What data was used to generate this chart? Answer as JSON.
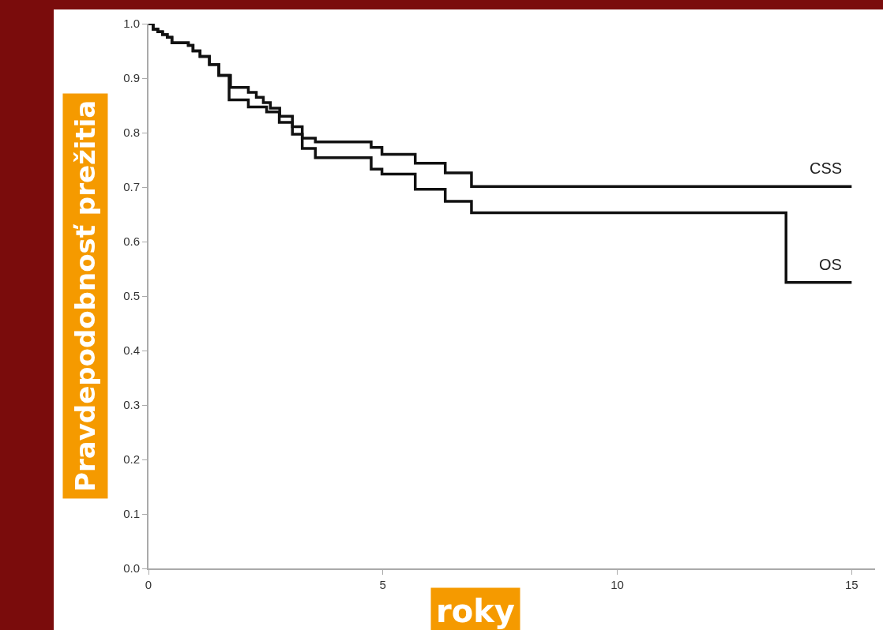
{
  "chart_data": {
    "type": "step",
    "xlabel": "roky",
    "ylabel": "Pravdepodobnosť prežitia",
    "xlim": [
      0,
      15.5
    ],
    "xticks": [
      0,
      5,
      10,
      15
    ],
    "ylim": [
      0,
      1.0
    ],
    "yticks": [
      {
        "value": 0,
        "label": "0.0"
      },
      {
        "value": 0.1,
        "label": "0.1"
      },
      {
        "value": 0.2,
        "label": "0.2"
      },
      {
        "value": 0.3,
        "label": "0.3"
      },
      {
        "value": 0.4,
        "label": "0.4"
      },
      {
        "value": 0.5,
        "label": "0.5"
      },
      {
        "value": 0.6,
        "label": "0.6"
      },
      {
        "value": 0.7,
        "label": "0.7"
      },
      {
        "value": 0.8,
        "label": "0.8"
      },
      {
        "value": 0.9,
        "label": "0.9"
      },
      {
        "value": 1,
        "label": "1.0"
      }
    ],
    "grid": false,
    "legend": false,
    "marker": "none",
    "line_style": "solid",
    "series": [
      {
        "name": "CSS",
        "color": "#111111",
        "x": [
          0,
          0.1,
          0.2,
          0.3,
          0.4,
          0.5,
          0.85,
          0.95,
          1.1,
          1.3,
          1.5,
          1.75,
          2.13,
          2.3,
          2.45,
          2.6,
          2.8,
          3.07,
          3.28,
          3.56,
          4.75,
          4.98,
          5.69,
          6.33,
          6.89,
          15
        ],
        "values": [
          1.0,
          0.99,
          0.985,
          0.98,
          0.975,
          0.965,
          0.96,
          0.95,
          0.94,
          0.925,
          0.905,
          0.883,
          0.874,
          0.865,
          0.855,
          0.845,
          0.83,
          0.811,
          0.79,
          0.783,
          0.773,
          0.76,
          0.744,
          0.726,
          0.701,
          0.701
        ]
      },
      {
        "name": "OS",
        "color": "#111111",
        "x": [
          0,
          0.1,
          0.2,
          0.3,
          0.4,
          0.5,
          0.85,
          0.95,
          1.1,
          1.3,
          1.5,
          1.72,
          2.13,
          2.52,
          2.79,
          3.07,
          3.28,
          3.56,
          4.75,
          4.98,
          5.69,
          6.33,
          6.89,
          13.6,
          15
        ],
        "values": [
          1.0,
          0.99,
          0.985,
          0.98,
          0.975,
          0.965,
          0.96,
          0.95,
          0.94,
          0.925,
          0.905,
          0.86,
          0.847,
          0.838,
          0.819,
          0.797,
          0.771,
          0.754,
          0.733,
          0.724,
          0.696,
          0.674,
          0.653,
          0.525,
          0.525
        ]
      }
    ]
  }
}
